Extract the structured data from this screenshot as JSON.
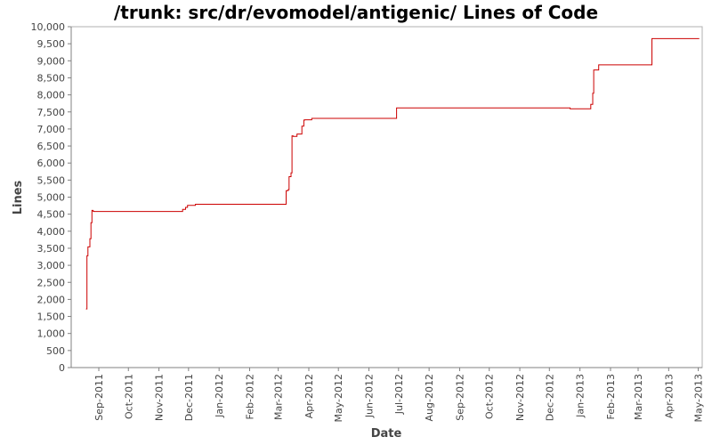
{
  "chart_data": {
    "type": "line",
    "title": "/trunk: src/dr/evomodel/antigenic/ Lines of Code",
    "xlabel": "Date",
    "ylabel": "Lines",
    "ylim": [
      0,
      10000
    ],
    "yticks": [
      0,
      500,
      1000,
      1500,
      2000,
      2500,
      3000,
      3500,
      4000,
      4500,
      5000,
      5500,
      6000,
      6500,
      7000,
      7500,
      8000,
      8500,
      9000,
      9500,
      10000
    ],
    "ytick_labels": [
      "0",
      "500",
      "1,000",
      "1,500",
      "2,000",
      "2,500",
      "3,000",
      "3,500",
      "4,000",
      "4,500",
      "5,000",
      "5,500",
      "6,000",
      "6,500",
      "7,000",
      "7,500",
      "8,000",
      "8,500",
      "9,000",
      "9,500",
      "10,000"
    ],
    "xlim": [
      "2011-08-04",
      "2013-05-05"
    ],
    "xticks": [
      "2011-09-01",
      "2011-10-01",
      "2011-11-01",
      "2011-12-01",
      "2012-01-01",
      "2012-02-01",
      "2012-03-01",
      "2012-04-01",
      "2012-05-01",
      "2012-06-01",
      "2012-07-01",
      "2012-08-01",
      "2012-09-01",
      "2012-10-01",
      "2012-11-01",
      "2012-12-01",
      "2013-01-01",
      "2013-02-01",
      "2013-03-01",
      "2013-04-01",
      "2013-05-01"
    ],
    "xtick_labels": [
      "Sep-2011",
      "Oct-2011",
      "Nov-2011",
      "Dec-2011",
      "Jan-2012",
      "Feb-2012",
      "Mar-2012",
      "Apr-2012",
      "May-2012",
      "Jun-2012",
      "Jul-2012",
      "Aug-2012",
      "Sep-2012",
      "Oct-2012",
      "Nov-2012",
      "Dec-2012",
      "Jan-2013",
      "Feb-2013",
      "Mar-2013",
      "Apr-2013",
      "May-2013"
    ],
    "grid": false,
    "line_color": "#cc0000",
    "series": [
      {
        "x": [
          "2011-08-19",
          "2011-08-20",
          "2011-08-21",
          "2011-08-22",
          "2011-08-23",
          "2011-08-24",
          "2011-08-25",
          "2011-08-26",
          "2011-08-27",
          "2011-11-23",
          "2011-11-25",
          "2011-11-28",
          "2011-11-30",
          "2011-12-08",
          "2012-02-28",
          "2012-03-09",
          "2012-03-11",
          "2012-03-12",
          "2012-03-14",
          "2012-03-15",
          "2012-03-16",
          "2012-03-20",
          "2012-03-25",
          "2012-03-27",
          "2012-03-28",
          "2012-04-04",
          "2012-06-29",
          "2012-12-22",
          "2013-01-12",
          "2013-01-14",
          "2013-01-15",
          "2013-01-16",
          "2013-01-17",
          "2013-01-20",
          "2013-03-15",
          "2013-05-02"
        ],
        "y": [
          1720,
          3280,
          3540,
          3540,
          3780,
          4250,
          4610,
          4590,
          4580,
          4580,
          4640,
          4700,
          4760,
          4790,
          4790,
          5190,
          5220,
          5600,
          5710,
          6800,
          6780,
          6850,
          7080,
          7260,
          7270,
          7310,
          7620,
          7590,
          7720,
          8050,
          8730,
          8730,
          8730,
          8880,
          9650,
          9650
        ]
      }
    ]
  }
}
